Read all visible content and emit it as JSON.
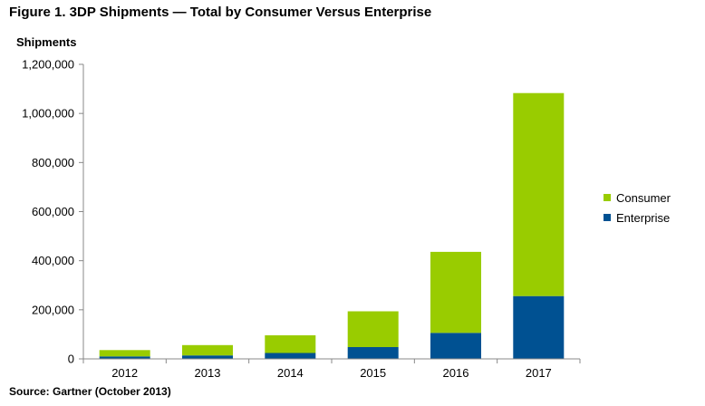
{
  "chart_data": {
    "type": "bar",
    "stacked": true,
    "title": "Figure 1. 3DP Shipments — Total by Consumer Versus Enterprise",
    "ylabel": "Shipments",
    "xlabel": "",
    "source": "Source: Gartner (October 2013)",
    "categories": [
      "2012",
      "2013",
      "2014",
      "2015",
      "2016",
      "2017"
    ],
    "ylim": [
      0,
      1200000
    ],
    "yticks": [
      0,
      200000,
      400000,
      600000,
      800000,
      1000000,
      1200000
    ],
    "ytick_labels": [
      "0",
      "200,000",
      "400,000",
      "600,000",
      "800,000",
      "1,000,000",
      "1,200,000"
    ],
    "grid": false,
    "legend_position": "right",
    "series": [
      {
        "name": "Enterprise",
        "color": "#005192",
        "values": [
          10000,
          14000,
          24000,
          48000,
          106000,
          256000
        ]
      },
      {
        "name": "Consumer",
        "color": "#99cc00",
        "values": [
          26000,
          42000,
          72000,
          146000,
          330000,
          827000
        ]
      }
    ],
    "legend": [
      {
        "name": "Consumer",
        "color": "#99cc00"
      },
      {
        "name": "Enterprise",
        "color": "#005192"
      }
    ]
  }
}
